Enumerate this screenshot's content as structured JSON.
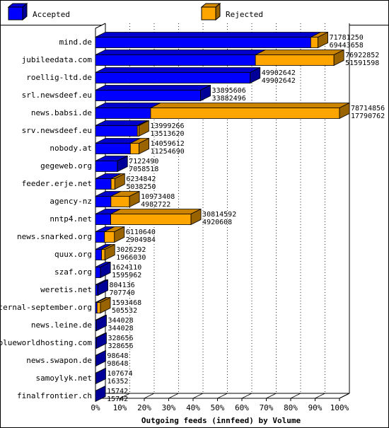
{
  "colors": {
    "background": "#ffffff",
    "border": "#000000",
    "accepted": "#0000ff",
    "rejected": "#ffa500"
  },
  "chart_data": {
    "type": "bar",
    "orientation": "horizontal",
    "stacked": true,
    "title": "",
    "xlabel": "Outgoing feeds (innfeed) by Volume",
    "ylabel": "",
    "xlim": [
      0,
      100
    ],
    "x_ticks": [
      "0%",
      "10%",
      "20%",
      "30%",
      "40%",
      "50%",
      "60%",
      "70%",
      "80%",
      "90%",
      "100%"
    ],
    "grid": true,
    "legend_position": "top",
    "legend": [
      {
        "name": "Accepted",
        "color": "#0000ff"
      },
      {
        "name": "Rejected",
        "color": "#ffa500"
      }
    ],
    "categories": [
      "mind.de",
      "jubileedata.com",
      "roellig-ltd.de",
      "srl.newsdeef.eu",
      "news.babsi.de",
      "srv.newsdeef.eu",
      "nobody.at",
      "gegeweb.org",
      "feeder.erje.net",
      "agency-nz",
      "nntp4.net",
      "news.snarked.org",
      "quux.org",
      "szaf.org",
      "weretis.net",
      "eternal-september.org",
      "news.leine.de",
      "blueworldhosting.com",
      "news.swapon.de",
      "samoylyk.net",
      "finalfrontier.ch"
    ],
    "offered": [
      71781250,
      76922852,
      49902642,
      33895606,
      78714856,
      13999266,
      14059612,
      7122490,
      6234842,
      10973408,
      30814592,
      6110640,
      3026292,
      1624110,
      804136,
      1593468,
      344028,
      328656,
      98648,
      107674,
      15742
    ],
    "series": [
      {
        "name": "Accepted",
        "values": [
          69443658,
          51591598,
          49902642,
          33882496,
          17790762,
          13513620,
          11254690,
          7058518,
          5038250,
          4982722,
          4920608,
          2904984,
          1966030,
          1595962,
          707740,
          505532,
          344028,
          328656,
          98648,
          16352,
          15742
        ]
      }
    ]
  }
}
